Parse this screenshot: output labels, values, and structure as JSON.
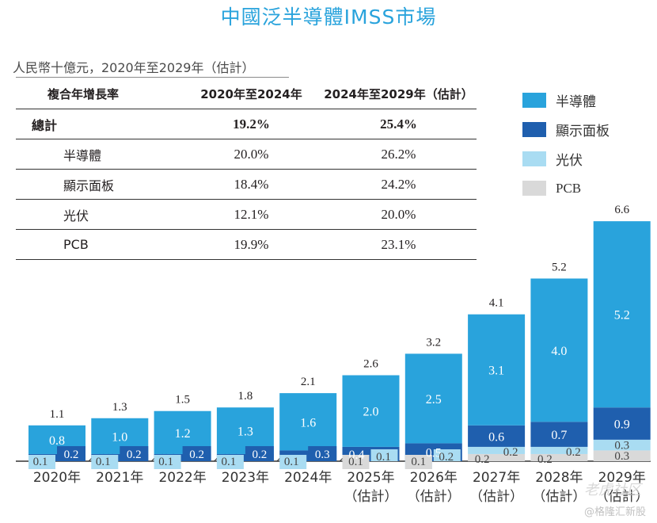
{
  "title": "中國泛半導體IMSS市場",
  "subtitle": "人民幣十億元，2020年至2029年（估計）",
  "cagr_table": {
    "headers": [
      "複合年增長率",
      "2020年至2024年",
      "2024年至2029年（估計）"
    ],
    "rows": [
      {
        "label": "總計",
        "v1": "19.2%",
        "v2": "25.4%",
        "total": true
      },
      {
        "label": "半導體",
        "v1": "20.0%",
        "v2": "26.2%"
      },
      {
        "label": "顯示面板",
        "v1": "18.4%",
        "v2": "24.2%"
      },
      {
        "label": "光伏",
        "v1": "12.1%",
        "v2": "20.0%"
      },
      {
        "label": "PCB",
        "v1": "19.9%",
        "v2": "23.1%"
      }
    ]
  },
  "legend": [
    {
      "label": "半導體",
      "color": "#29a3dc"
    },
    {
      "label": "顯示面板",
      "color": "#1f5fae"
    },
    {
      "label": "光伏",
      "color": "#a9dcf2"
    },
    {
      "label": "PCB",
      "color": "#d9d9d9"
    }
  ],
  "watermark": "@格隆汇新股",
  "watermark2": "老虎社区",
  "chart_data": {
    "type": "bar",
    "stacked": true,
    "title": "中國泛半導體IMSS市場",
    "ylabel": "人民幣十億元",
    "categories": [
      [
        "2020年",
        ""
      ],
      [
        "2021年",
        ""
      ],
      [
        "2022年",
        ""
      ],
      [
        "2023年",
        ""
      ],
      [
        "2024年",
        ""
      ],
      [
        "2025年",
        "（估計）"
      ],
      [
        "2026年",
        "（估計）"
      ],
      [
        "2027年",
        "（估計）"
      ],
      [
        "2028年",
        "（估計）"
      ],
      [
        "2029年",
        "（估計）"
      ]
    ],
    "series": [
      {
        "name": "PCB",
        "color": "#d9d9d9",
        "values": [
          0.0,
          0.1,
          0.1,
          0.1,
          0.1,
          0.1,
          0.1,
          0.2,
          0.2,
          0.3
        ]
      },
      {
        "name": "光伏",
        "color": "#a9dcf2",
        "values": [
          0.1,
          0.1,
          0.1,
          0.1,
          0.1,
          0.1,
          0.2,
          0.2,
          0.2,
          0.3
        ]
      },
      {
        "name": "顯示面板",
        "color": "#1f5fae",
        "values": [
          0.2,
          0.2,
          0.2,
          0.2,
          0.3,
          0.4,
          0.5,
          0.6,
          0.7,
          0.9
        ]
      },
      {
        "name": "半導體",
        "color": "#29a3dc",
        "values": [
          0.8,
          1.0,
          1.2,
          1.3,
          1.6,
          2.0,
          2.5,
          3.1,
          4.0,
          5.2
        ]
      }
    ],
    "totals": [
      1.1,
      1.3,
      1.5,
      1.8,
      2.1,
      2.6,
      3.2,
      4.1,
      5.2,
      6.6
    ],
    "ylim": [
      0,
      6.6
    ],
    "grid": false,
    "legend_position": "right"
  }
}
